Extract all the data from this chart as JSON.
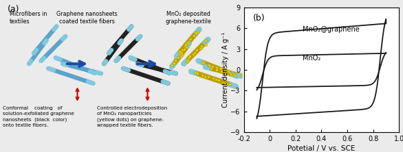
{
  "title_b": "(b)",
  "xlabel": "Potetial / V vs. SCE",
  "ylabel": "Current density / A g⁻¹",
  "xlim": [
    -0.2,
    1.0
  ],
  "ylim": [
    -9,
    9
  ],
  "xticks": [
    -0.2,
    0.0,
    0.2,
    0.4,
    0.6,
    0.8,
    1.0
  ],
  "yticks": [
    -9,
    -6,
    -3,
    0,
    3,
    6,
    9
  ],
  "label_mno2_graphene": "MnO₂@graphene",
  "label_mno2": "MnO₂",
  "line_color": "#1a1a1a",
  "background": "#ebebeb",
  "label_a": "(a)",
  "text_microfibers": "Microfibers in\ntextiles",
  "text_graphene": "Graphene nanosheets\ncoated textile fibers",
  "text_mno2_dep": "MnO₂ deposited\ngraphene-textile",
  "text_conformal": "Conformal    coating   of\nsolution-exfoliated graphene\nnanosheets  (black  color)\nonto textile fibers.",
  "text_controlled": "Controlled electrodeposition\nof MnO₂ nanoparticles\n(yellow dots) on graphene-\nwrapped textile fibers.",
  "fiber_blue": "#5ba3c9",
  "fiber_dark": "#222222",
  "fiber_yellow_bg": "#c8b830",
  "fiber_tip": "#7ecae0",
  "arrow_blue": "#1a4aaa",
  "arrow_red": "#cc0000"
}
